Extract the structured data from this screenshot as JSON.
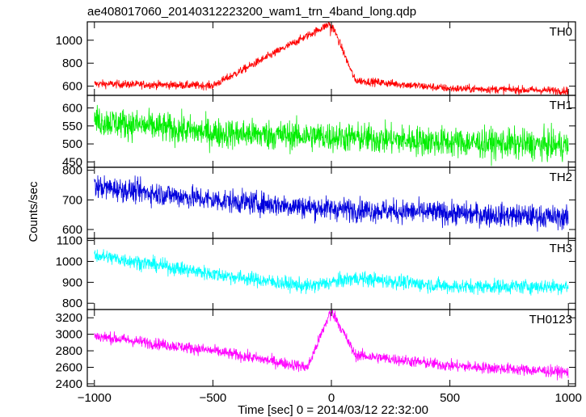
{
  "title": "ae408017060_20140312223200_wam1_trn_4band_long.qdp",
  "chart_data": {
    "type": "line",
    "title": "ae408017060_20140312223200_wam1_trn_4band_long.qdp",
    "xlabel": "Time [sec] 0 = 2014/03/12 22:32:00",
    "ylabel": "Counts/sec",
    "xlim": [
      -1030,
      1030
    ],
    "x_ticks": [
      -1000,
      -500,
      0,
      500,
      1000
    ],
    "x_tick_labels": [
      "−1000",
      "−500",
      "0",
      "500",
      "1000"
    ],
    "panels": [
      {
        "name": "TH0",
        "color": "#ff0000",
        "ylim": [
          520,
          1160
        ],
        "y_ticks": [
          600,
          800,
          1000
        ],
        "y_tick_labels": [
          "600",
          "800",
          "1000"
        ],
        "baseline_start": 620,
        "baseline_end": 560,
        "noise": 25,
        "peak": 1150,
        "description_points": [
          [
            -1000,
            620
          ],
          [
            -500,
            605
          ],
          [
            0,
            1150
          ],
          [
            100,
            650
          ],
          [
            500,
            580
          ],
          [
            1000,
            560
          ]
        ]
      },
      {
        "name": "TH1",
        "color": "#00ee00",
        "ylim": [
          435,
          635
        ],
        "y_ticks": [
          450,
          500,
          550,
          600
        ],
        "y_tick_labels": [
          "450",
          "500",
          "550",
          "600"
        ],
        "baseline_start": 565,
        "baseline_end": 495,
        "noise": 30,
        "peak": 0,
        "description_points": [
          [
            -1000,
            565
          ],
          [
            -500,
            530
          ],
          [
            0,
            520
          ],
          [
            500,
            505
          ],
          [
            1000,
            495
          ]
        ]
      },
      {
        "name": "TH2",
        "color": "#0000dd",
        "ylim": [
          570,
          810
        ],
        "y_ticks": [
          600,
          700,
          800
        ],
        "y_tick_labels": [
          "600",
          "700",
          "800"
        ],
        "baseline_start": 745,
        "baseline_end": 640,
        "noise": 28,
        "peak": 0,
        "description_points": [
          [
            -1000,
            745
          ],
          [
            -500,
            700
          ],
          [
            0,
            670
          ],
          [
            500,
            655
          ],
          [
            1000,
            640
          ]
        ]
      },
      {
        "name": "TH3",
        "color": "#00ffff",
        "ylim": [
          770,
          1110
        ],
        "y_ticks": [
          800,
          900,
          1000,
          1100
        ],
        "y_tick_labels": [
          "800",
          "900",
          "1000",
          "1100"
        ],
        "baseline_start": 1030,
        "baseline_end": 880,
        "noise": 25,
        "peak": 0,
        "description_points": [
          [
            -1000,
            1030
          ],
          [
            -500,
            940
          ],
          [
            -100,
            880
          ],
          [
            100,
            920
          ],
          [
            500,
            880
          ],
          [
            1000,
            880
          ]
        ]
      },
      {
        "name": "TH0123",
        "color": "#ff00ff",
        "ylim": [
          2370,
          3300
        ],
        "y_ticks": [
          2400,
          2600,
          2800,
          3000,
          3200
        ],
        "y_tick_labels": [
          "2400",
          "2600",
          "2800",
          "3000",
          "3200"
        ],
        "baseline_start": 2980,
        "baseline_end": 2540,
        "noise": 50,
        "peak": 3300,
        "description_points": [
          [
            -1000,
            2980
          ],
          [
            -500,
            2800
          ],
          [
            -100,
            2600
          ],
          [
            0,
            3300
          ],
          [
            100,
            2750
          ],
          [
            500,
            2620
          ],
          [
            1000,
            2540
          ]
        ]
      }
    ]
  }
}
